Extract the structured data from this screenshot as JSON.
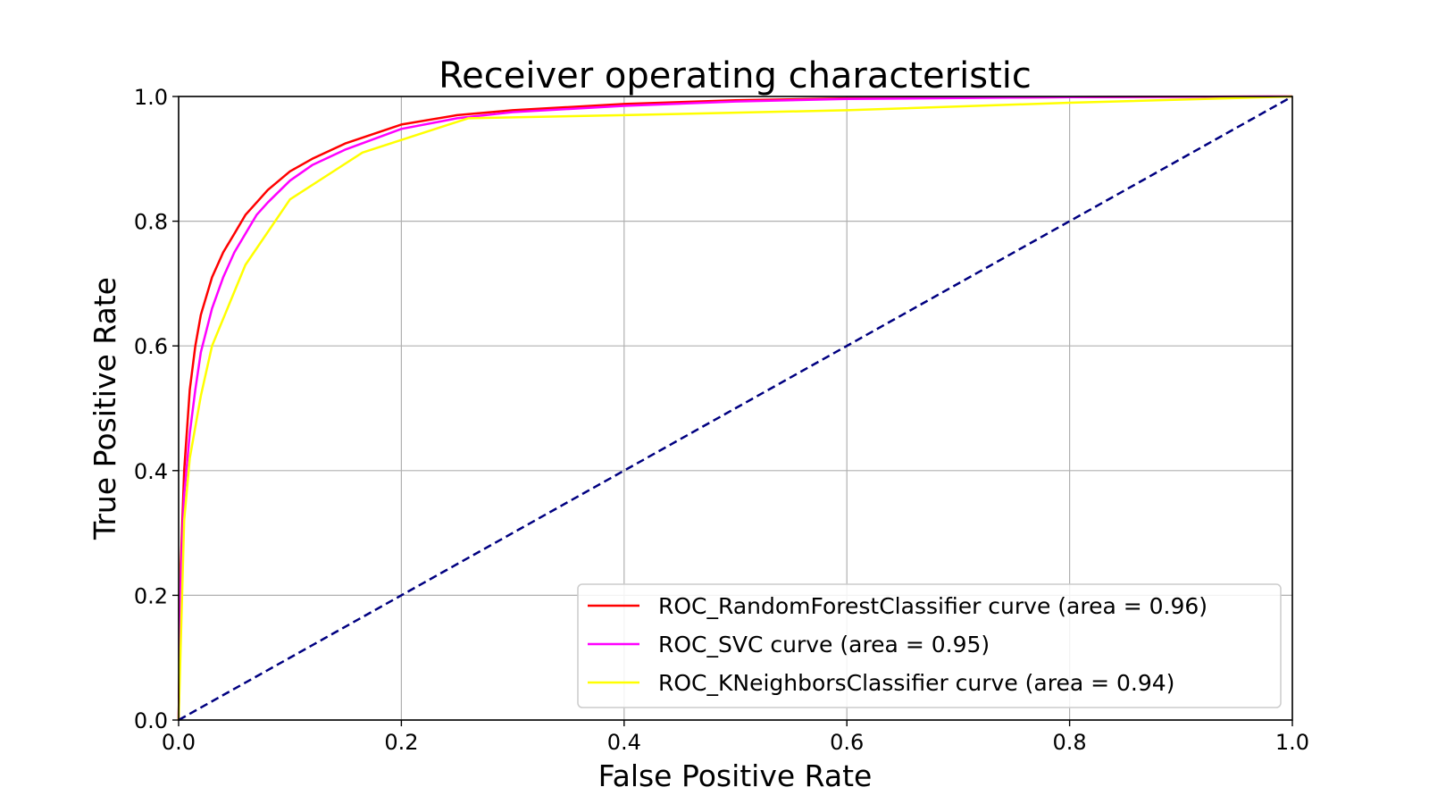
{
  "chart_data": {
    "type": "line",
    "title": "Receiver operating characteristic",
    "xlabel": "False Positive Rate",
    "ylabel": "True Positive Rate",
    "xlim": [
      0.0,
      1.0
    ],
    "ylim": [
      0.0,
      1.0
    ],
    "xticks": [
      "0.0",
      "0.2",
      "0.4",
      "0.6",
      "0.8",
      "1.0"
    ],
    "yticks": [
      "0.0",
      "0.2",
      "0.4",
      "0.6",
      "0.8",
      "1.0"
    ],
    "grid": true,
    "legend_position": "lower-right",
    "series": [
      {
        "name": "ROC_RandomForestClassifier curve (area = 0.96)",
        "color": "#ff0000",
        "style": "solid",
        "x": [
          0.0,
          0.002,
          0.005,
          0.01,
          0.015,
          0.02,
          0.03,
          0.04,
          0.05,
          0.06,
          0.07,
          0.08,
          0.1,
          0.12,
          0.15,
          0.2,
          0.25,
          0.3,
          0.4,
          0.5,
          0.6,
          0.8,
          1.0
        ],
        "y": [
          0.0,
          0.25,
          0.4,
          0.53,
          0.6,
          0.65,
          0.71,
          0.75,
          0.78,
          0.81,
          0.83,
          0.85,
          0.88,
          0.9,
          0.925,
          0.955,
          0.97,
          0.978,
          0.988,
          0.994,
          0.997,
          0.999,
          1.0
        ]
      },
      {
        "name": "ROC_SVC curve (area = 0.95)",
        "color": "#ff00ff",
        "style": "solid",
        "x": [
          0.0,
          0.002,
          0.005,
          0.01,
          0.015,
          0.02,
          0.03,
          0.04,
          0.05,
          0.06,
          0.07,
          0.08,
          0.1,
          0.12,
          0.15,
          0.2,
          0.25,
          0.3,
          0.4,
          0.5,
          0.6,
          0.8,
          1.0
        ],
        "y": [
          0.0,
          0.22,
          0.36,
          0.46,
          0.53,
          0.59,
          0.66,
          0.71,
          0.75,
          0.78,
          0.81,
          0.83,
          0.865,
          0.89,
          0.915,
          0.948,
          0.965,
          0.975,
          0.985,
          0.992,
          0.996,
          0.999,
          1.0
        ]
      },
      {
        "name": "ROC_KNeighborsClassifier curve (area = 0.94)",
        "color": "#ffff00",
        "style": "solid",
        "x": [
          0.0,
          0.005,
          0.01,
          0.02,
          0.03,
          0.06,
          0.1,
          0.165,
          0.26,
          0.4,
          0.6,
          0.8,
          1.0
        ],
        "y": [
          0.0,
          0.32,
          0.42,
          0.52,
          0.6,
          0.73,
          0.835,
          0.91,
          0.965,
          0.97,
          0.978,
          0.99,
          1.0
        ]
      },
      {
        "name": "",
        "color": "#000080",
        "style": "dashed",
        "x": [
          0.0,
          1.0
        ],
        "y": [
          0.0,
          1.0
        ]
      }
    ]
  }
}
